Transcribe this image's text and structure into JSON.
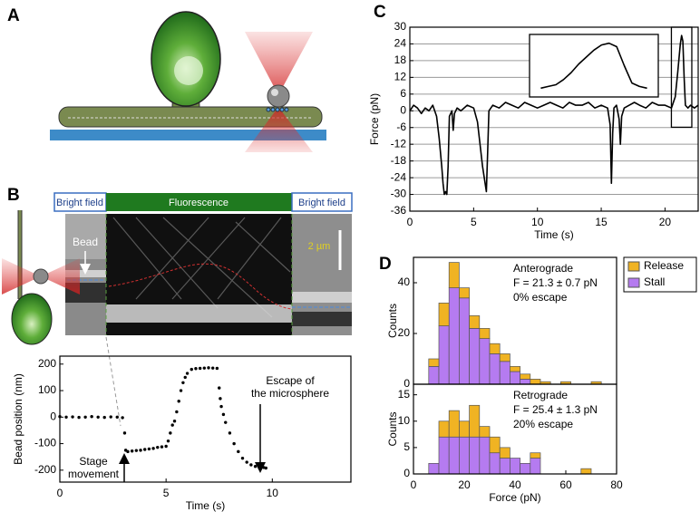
{
  "panel_labels": [
    "A",
    "B",
    "C",
    "D"
  ],
  "kymograph": {
    "header": [
      "Bright field",
      "Fluorescence",
      "Bright field"
    ],
    "bead_label": "Bead",
    "scale_bar": "2 µm"
  },
  "chart_data": [
    {
      "type": "line",
      "xlabel": "Time (s)",
      "ylabel": "Force (pN)",
      "color": "#000000",
      "grid": true,
      "x": [
        0,
        0.3,
        0.6,
        0.9,
        1.2,
        1.5,
        1.8,
        2.1,
        2.3,
        2.5,
        2.6,
        2.7,
        2.8,
        2.9,
        3.0,
        3.1,
        3.3,
        3.4,
        3.5,
        3.7,
        4.0,
        4.5,
        5.0,
        5.3,
        5.5,
        5.7,
        5.9,
        6.0,
        6.1,
        6.2,
        6.5,
        7,
        7.5,
        8,
        8.5,
        9,
        9.5,
        10,
        10.5,
        11,
        11.5,
        12,
        12.5,
        13,
        13.5,
        14,
        14.5,
        15,
        15.5,
        15.7,
        15.8,
        15.9,
        16.0,
        16.2,
        16.4,
        16.5,
        16.6,
        16.8,
        17.2,
        17.6,
        18,
        18.5,
        19,
        19.5,
        20,
        20.5,
        20.8,
        21.0,
        21.2,
        21.3,
        21.4,
        21.5,
        21.6,
        21.8,
        22,
        22.3,
        22.6
      ],
      "values": [
        0,
        2,
        1,
        -1,
        1,
        0,
        2,
        -2,
        -10,
        -20,
        -26,
        -30,
        -29,
        -30,
        -20,
        -2,
        0,
        -7,
        -1,
        1,
        0,
        2,
        1,
        -4,
        -12,
        -20,
        -26,
        -29,
        -15,
        0,
        2,
        1,
        3,
        2,
        1,
        3,
        2,
        1,
        2,
        3,
        2,
        1,
        3,
        2,
        2,
        3,
        1,
        2,
        1,
        -5,
        -26,
        -8,
        1,
        2,
        -3,
        -12,
        -2,
        1,
        2,
        3,
        2,
        1,
        3,
        2,
        2,
        1,
        5,
        14,
        24,
        27,
        25,
        12,
        2,
        1,
        2,
        1,
        2
      ],
      "xlim": [
        0,
        22.6
      ],
      "xticks": [
        0,
        5,
        10,
        15,
        20
      ],
      "ylim": [
        -36,
        30
      ],
      "yticks": [
        -36,
        -30,
        -24,
        -18,
        -12,
        -6,
        0,
        6,
        12,
        18,
        24,
        30
      ]
    },
    {
      "type": "line",
      "color": "#000000",
      "x": [
        20.6,
        20.7,
        20.8,
        20.9,
        21.0,
        21.1,
        21.2,
        21.3,
        21.4,
        21.5,
        21.6,
        21.7,
        21.8,
        21.9,
        22.0
      ],
      "values": [
        1,
        2,
        3,
        6,
        10,
        15,
        19,
        23,
        26,
        27,
        25,
        14,
        4,
        2,
        1
      ],
      "xlim": [
        20.5,
        22.1
      ],
      "ylim": [
        -2,
        30
      ]
    },
    {
      "type": "scatter",
      "xlabel": "Time (s)",
      "ylabel": "Bead position (nm)",
      "color": "#000000",
      "x": [
        0,
        0.3,
        0.6,
        0.9,
        1.2,
        1.5,
        1.8,
        2.1,
        2.4,
        2.7,
        2.95,
        3.05,
        3.1,
        3.2,
        3.4,
        3.6,
        3.8,
        4.0,
        4.2,
        4.4,
        4.6,
        4.8,
        5.0,
        5.1,
        5.2,
        5.3,
        5.4,
        5.5,
        5.6,
        5.7,
        5.8,
        5.9,
        6.0,
        6.2,
        6.4,
        6.6,
        6.8,
        7.0,
        7.2,
        7.4,
        7.5,
        7.55,
        7.6,
        7.7,
        7.8,
        8.0,
        8.2,
        8.4,
        8.6,
        8.8,
        9.0,
        9.2,
        9.4,
        9.6,
        9.7
      ],
      "values": [
        2,
        0,
        1,
        -1,
        0,
        2,
        0,
        -1,
        1,
        0,
        -2,
        -60,
        -125,
        -130,
        -128,
        -126,
        -125,
        -122,
        -120,
        -118,
        -114,
        -112,
        -110,
        -90,
        -60,
        -30,
        -15,
        20,
        60,
        100,
        130,
        150,
        165,
        180,
        183,
        184,
        185,
        186,
        185,
        184,
        110,
        70,
        40,
        10,
        -20,
        -60,
        -100,
        -130,
        -155,
        -170,
        -180,
        -186,
        -188,
        -190,
        -192
      ],
      "xlim": [
        0,
        13.7
      ],
      "xticks": [
        0,
        5,
        10
      ],
      "ylim": [
        -245,
        230
      ],
      "yticks": [
        -200,
        -100,
        0,
        100,
        200
      ],
      "annotations": [
        [
          "Stage",
          "movement"
        ],
        [
          "Escape of",
          "the microsphere"
        ]
      ]
    },
    {
      "type": "histogram",
      "stacked": true,
      "ylabel": "Counts",
      "legend": "right",
      "bins": [
        6,
        10,
        14,
        18,
        22,
        26,
        30,
        34,
        38,
        42,
        46,
        50,
        54,
        58,
        62,
        66,
        70,
        74
      ],
      "series": [
        {
          "name": "Stall",
          "color": "#b57bf0",
          "values": [
            7,
            23,
            38,
            34,
            22,
            18,
            12,
            9,
            5,
            2,
            0,
            0,
            0,
            0,
            0,
            0,
            0
          ]
        },
        {
          "name": "Release",
          "color": "#f0b323",
          "values": [
            3,
            9,
            10,
            4,
            5,
            4,
            4,
            3,
            2,
            2,
            2,
            1,
            0,
            1,
            0,
            0,
            1
          ]
        }
      ],
      "xlim": [
        0,
        80
      ],
      "ylim": [
        0,
        50
      ],
      "yticks": [
        0,
        20,
        40
      ],
      "annotations": [
        "Anterograde",
        "F = 21.3 ± 0.7 pN",
        "0% escape"
      ]
    },
    {
      "type": "histogram",
      "stacked": true,
      "ylabel": "Counts",
      "xlabel": "Force (pN)",
      "bins": [
        6,
        10,
        14,
        18,
        22,
        26,
        30,
        34,
        38,
        42,
        46,
        50,
        54,
        58,
        62,
        66,
        70,
        74
      ],
      "series": [
        {
          "color": "#b57bf0",
          "values": [
            2,
            7,
            7,
            7,
            7,
            7,
            4,
            3,
            3,
            2,
            3,
            0,
            0,
            0,
            0,
            0,
            0
          ]
        },
        {
          "color": "#f0b323",
          "values": [
            0,
            3,
            5,
            3,
            6,
            2,
            3,
            2,
            0,
            0,
            1,
            0,
            0,
            0,
            0,
            1,
            0
          ]
        }
      ],
      "xlim": [
        0,
        80
      ],
      "xticks": [
        0,
        20,
        40,
        60,
        80
      ],
      "ylim": [
        0,
        17
      ],
      "yticks": [
        0,
        5,
        10,
        15
      ],
      "annotations": [
        "Retrograde",
        "F = 25.4 ± 1.3 pN",
        "20% escape"
      ]
    }
  ]
}
